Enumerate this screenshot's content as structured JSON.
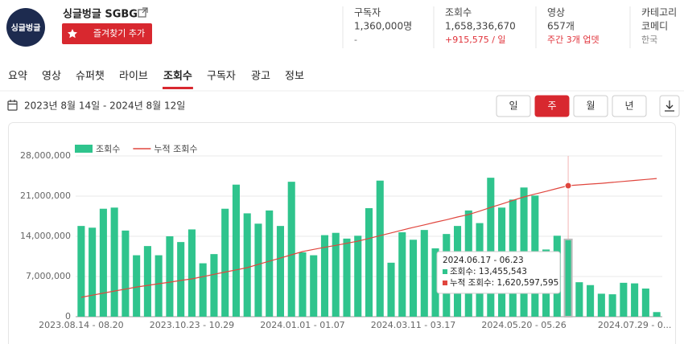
{
  "channel": {
    "avatar_text": "싱글벙글",
    "name": "싱글벙글 SGBG",
    "favorite_button": "즐겨찾기 추가"
  },
  "stats": [
    {
      "label": "구독자",
      "value": "1,360,000명",
      "sub": "-",
      "sub_color": "#666666"
    },
    {
      "label": "조회수",
      "value": "1,658,336,670",
      "sub": "+915,575 / 일",
      "sub_color": "#e0323a"
    },
    {
      "label": "영상",
      "value": "657개",
      "sub": "주간 3개 업뎃",
      "sub_color": "#e0323a"
    },
    {
      "label": "카테고리",
      "value": "코메디",
      "sub": "한국",
      "sub_color": "#888888"
    }
  ],
  "tabs": [
    "요약",
    "영상",
    "슈퍼챗",
    "라이브",
    "조회수",
    "구독자",
    "광고",
    "정보"
  ],
  "active_tab": 4,
  "date_range": "2023년 8월 14일 - 2024년 8월 12일",
  "periods": [
    "일",
    "주",
    "월",
    "년"
  ],
  "active_period": 1,
  "chart_data": {
    "type": "bar",
    "categories": [
      "2023.08.14 - 08.20",
      null,
      null,
      null,
      null,
      null,
      null,
      null,
      null,
      null,
      "2023.10.23 - 10.29",
      null,
      null,
      null,
      null,
      null,
      null,
      null,
      null,
      null,
      "2024.01.01 - 01.07",
      null,
      null,
      null,
      null,
      null,
      null,
      null,
      null,
      null,
      "2024.03.11 - 03.17",
      null,
      null,
      null,
      null,
      null,
      null,
      null,
      null,
      null,
      "2024.05.20 - 05.26",
      null,
      null,
      null,
      null,
      null,
      null,
      null,
      null,
      null,
      "2024.07.29 - 0...",
      null,
      null
    ],
    "series": [
      {
        "name": "조회수",
        "type": "bar",
        "color": "#2fc48d",
        "values": [
          15800000,
          15500000,
          18800000,
          19000000,
          15000000,
          10700000,
          12300000,
          10700000,
          14000000,
          13000000,
          15200000,
          9300000,
          10900000,
          18800000,
          23000000,
          18000000,
          16200000,
          18500000,
          15800000,
          23500000,
          11200000,
          10700000,
          14200000,
          14600000,
          13600000,
          14100000,
          18900000,
          23700000,
          9400000,
          14700000,
          13400000,
          15100000,
          11900000,
          14400000,
          15800000,
          18500000,
          16300000,
          24200000,
          19000000,
          20400000,
          22500000,
          21100000,
          11700000,
          14100000,
          13455543,
          6000000,
          5500000,
          4000000,
          3900000,
          5900000,
          5800000,
          4900000,
          800000
        ]
      },
      {
        "name": "누적 조회수",
        "type": "line",
        "color": "#e0463e",
        "axis": "y2",
        "values": [
          1038000000,
          1049000000,
          1060000000,
          1071000000,
          1081000000,
          1092000000,
          1100000000,
          1109000000,
          1117000000,
          1126000000,
          1134000000,
          1146000000,
          1158000000,
          1170000000,
          1181000000,
          1193000000,
          1210000000,
          1227000000,
          1243000000,
          1260000000,
          1277000000,
          1288000000,
          1299000000,
          1309000000,
          1320000000,
          1331000000,
          1345000000,
          1360000000,
          1374000000,
          1389000000,
          1403000000,
          1416000000,
          1430000000,
          1443000000,
          1457000000,
          1470000000,
          1488000000,
          1507000000,
          1525000000,
          1544000000,
          1562000000,
          1577000000,
          1591000000,
          1606000000,
          1620597595,
          1625000000,
          1629000000,
          1633000000,
          1638000000,
          1643000000,
          1648000000,
          1653000000,
          1658000000
        ]
      }
    ],
    "ylim": [
      0,
      28000000
    ],
    "yticks": [
      0,
      {
        "value": 7000000,
        "label": "7,000,000"
      },
      {
        "value": 14000000,
        "label": "14,000,000"
      },
      {
        "value": 21000000,
        "label": "21,000,000"
      },
      {
        "value": 28000000,
        "label": "28,000,000"
      }
    ],
    "y2lim": [
      937000000,
      1776000000
    ],
    "grid": true,
    "legend": "top-left",
    "tooltip": {
      "index": 44,
      "title": "2024.06.17 - 06.23",
      "lines": [
        "조회수: 13,455,543",
        "누적 조회수: 1,620,597,595"
      ]
    }
  }
}
